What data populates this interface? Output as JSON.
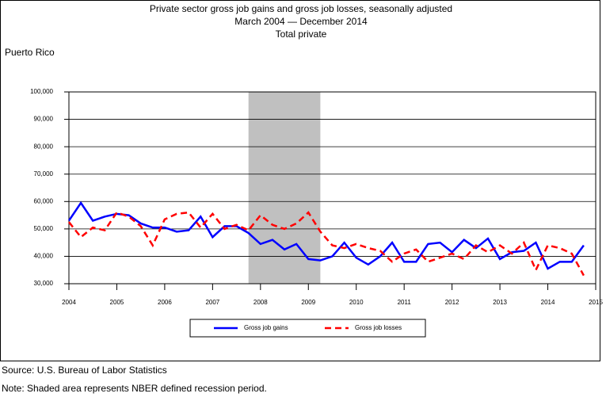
{
  "chart_data": {
    "type": "line",
    "title": "Private sector gross job gains and gross job losses, seasonally adjusted",
    "subtitles": [
      "March 2004 — December 2014",
      "Total private"
    ],
    "region": "Puerto Rico",
    "x": [
      2004,
      2004.25,
      2004.5,
      2004.75,
      2005,
      2005.25,
      2005.5,
      2005.75,
      2006,
      2006.25,
      2006.5,
      2006.75,
      2007,
      2007.25,
      2007.5,
      2007.75,
      2008,
      2008.25,
      2008.5,
      2008.75,
      2009,
      2009.25,
      2009.5,
      2009.75,
      2010,
      2010.25,
      2010.5,
      2010.75,
      2011,
      2011.25,
      2011.5,
      2011.75,
      2012,
      2012.25,
      2012.5,
      2012.75,
      2013,
      2013.25,
      2013.5,
      2013.75,
      2014,
      2014.25,
      2014.5,
      2014.75
    ],
    "series": [
      {
        "name": "Gross job gains",
        "color": "#0000ff",
        "dash": false,
        "values": [
          53000,
          59500,
          53000,
          54500,
          55500,
          55000,
          52000,
          50500,
          50500,
          49000,
          49500,
          54500,
          47000,
          51000,
          51000,
          48500,
          44500,
          46000,
          42500,
          44500,
          39000,
          38500,
          40000,
          45000,
          39500,
          37000,
          40000,
          45000,
          38000,
          38000,
          44500,
          45000,
          41500,
          46000,
          43000,
          46500,
          39000,
          41500,
          42000,
          45000,
          35500,
          38000,
          38000,
          44000
        ]
      },
      {
        "name": "Gross job losses",
        "color": "#ff0000",
        "dash": true,
        "values": [
          52500,
          47000,
          50500,
          49500,
          56000,
          54500,
          51000,
          44000,
          53500,
          55500,
          56000,
          50500,
          55500,
          50000,
          51500,
          49500,
          55000,
          51500,
          50000,
          52000,
          56000,
          49000,
          44000,
          43000,
          44500,
          43000,
          42000,
          38000,
          41000,
          42500,
          38000,
          39500,
          41000,
          39000,
          44000,
          41500,
          44000,
          41000,
          45000,
          35000,
          44000,
          43000,
          41000,
          33000
        ]
      }
    ],
    "recession": [
      2007.75,
      2009.25
    ],
    "recession_color": "#c0c0c0",
    "xlim": [
      2004,
      2015
    ],
    "xticks": [
      2004,
      2005,
      2006,
      2007,
      2008,
      2009,
      2010,
      2011,
      2012,
      2013,
      2014,
      2015
    ],
    "ylim": [
      30000,
      100000
    ],
    "yticks": [
      {
        "value": 30000,
        "label": "30,000"
      },
      {
        "value": 40000,
        "label": "40,000"
      },
      {
        "value": 50000,
        "label": "50,000"
      },
      {
        "value": 60000,
        "label": "60,000"
      },
      {
        "value": 70000,
        "label": "70,000"
      },
      {
        "value": 80000,
        "label": "80,000"
      },
      {
        "value": 90000,
        "label": "90,000"
      },
      {
        "value": 100000,
        "label": "100,000"
      }
    ],
    "grid": true
  },
  "footer": {
    "source": "Source: U.S. Bureau of Labor Statistics",
    "note": "Note: Shaded area represents NBER defined recession period."
  }
}
